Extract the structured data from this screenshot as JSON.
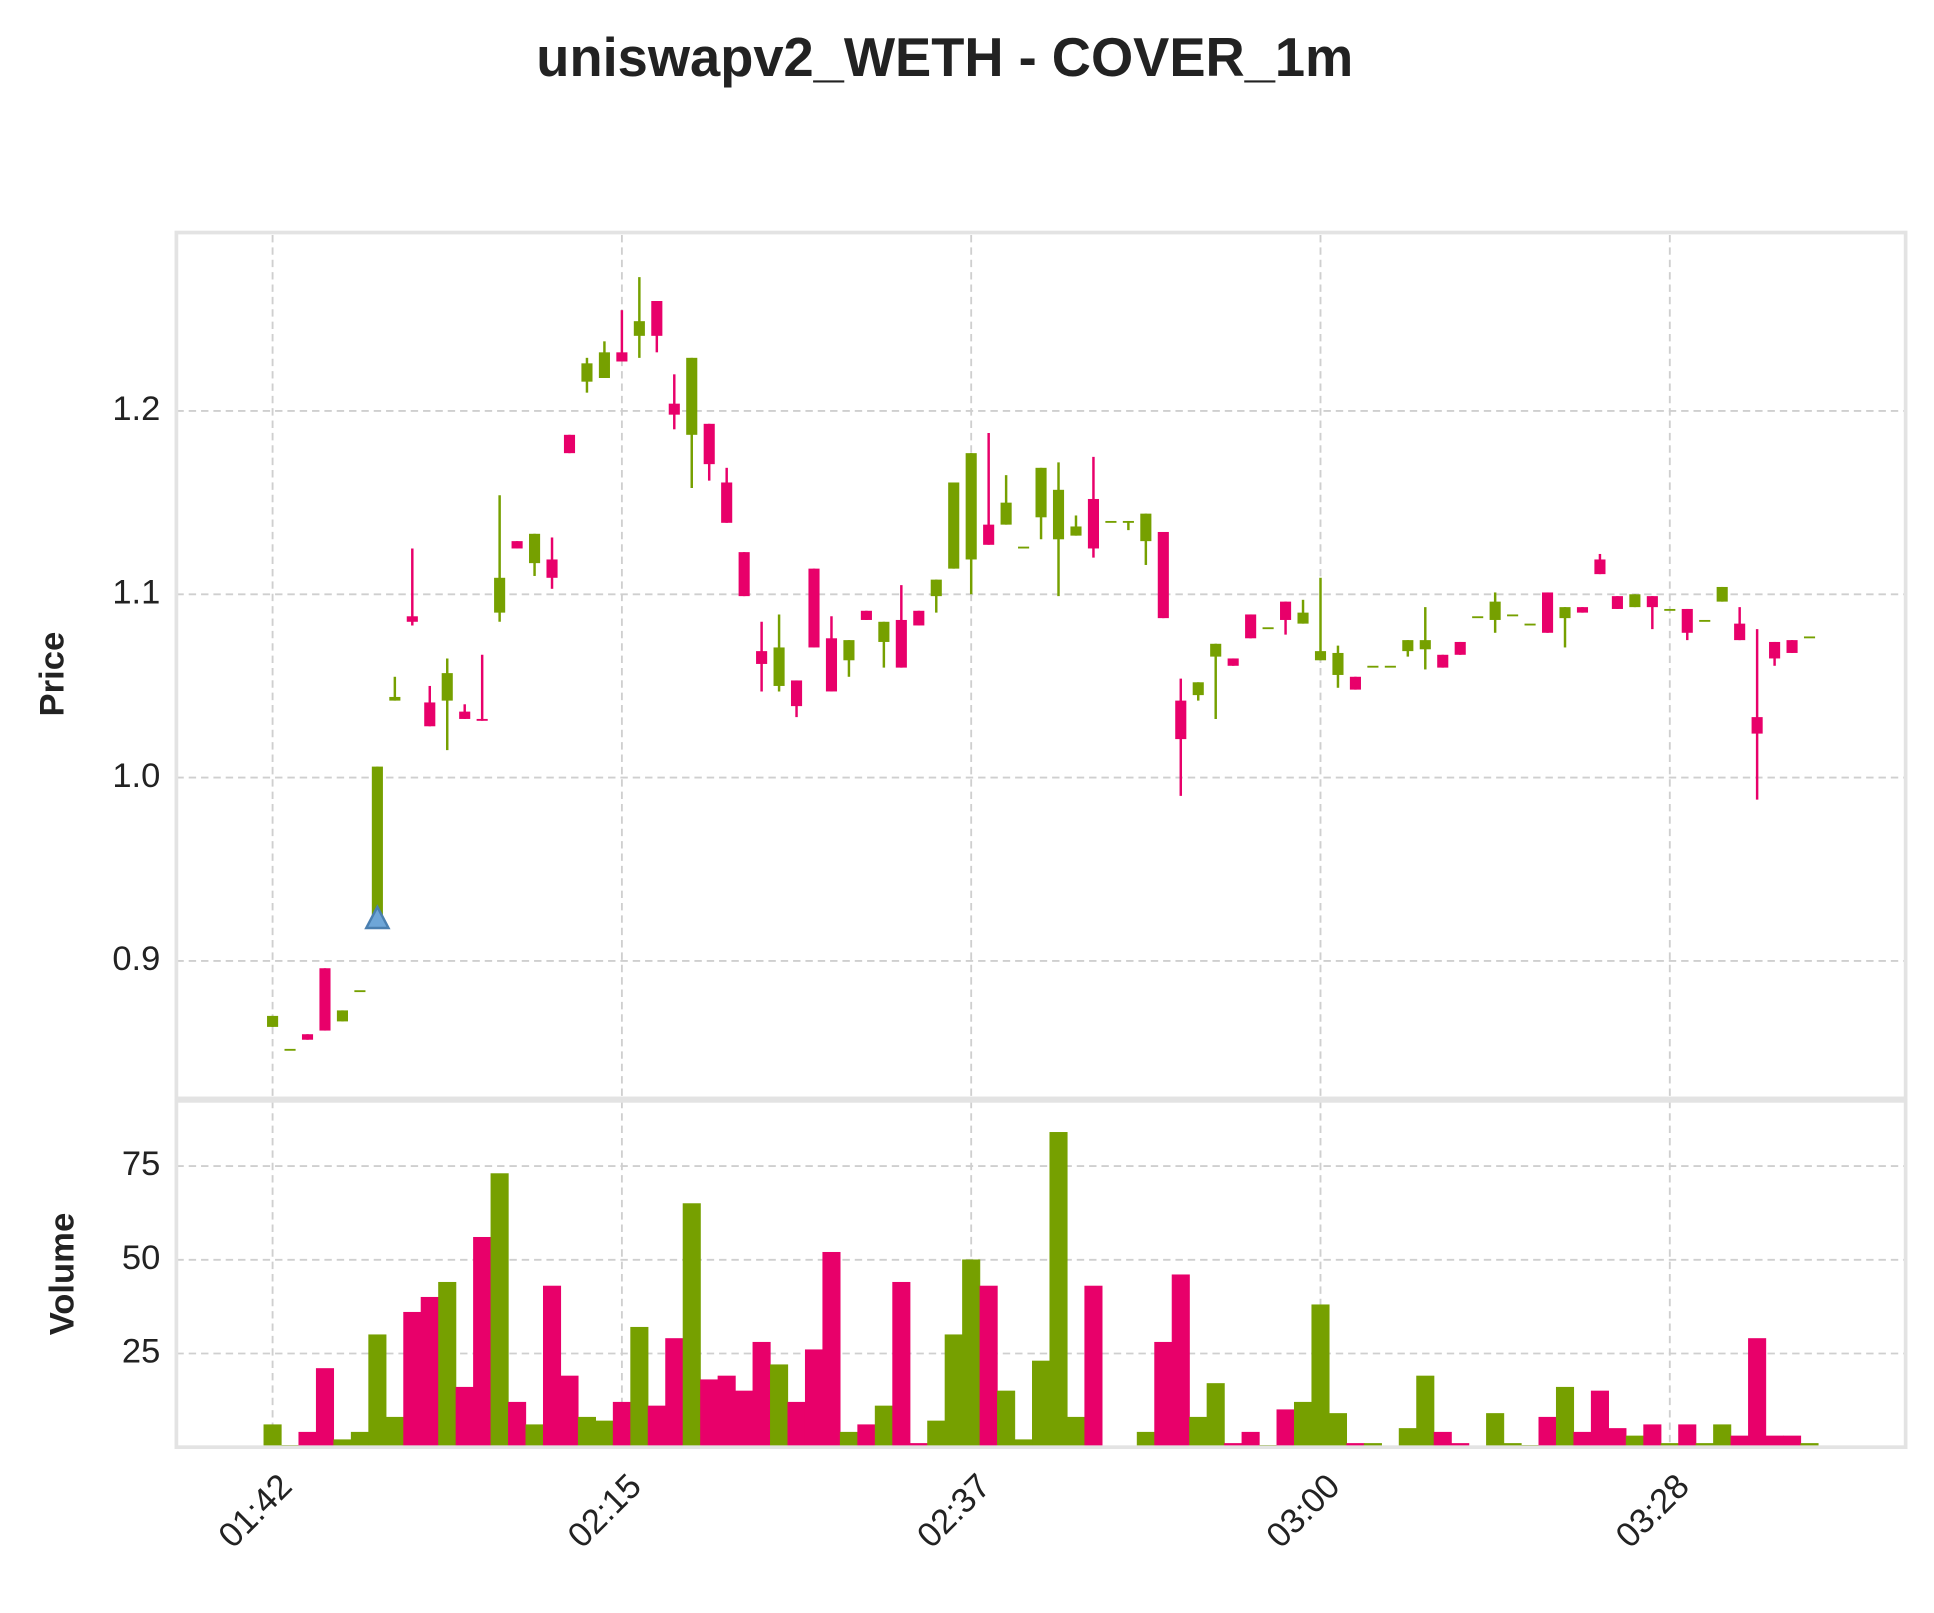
{
  "chart_data": {
    "type": "candlestick",
    "title": "uniswapv2_WETH - COVER_1m",
    "ylabel": "Price",
    "volume_label": "Volume",
    "categories": [
      "01:42",
      null,
      null,
      null,
      null,
      null,
      null,
      null,
      null,
      null,
      null,
      null,
      null,
      null,
      null,
      null,
      null,
      null,
      null,
      null,
      "02:15",
      null,
      null,
      null,
      null,
      null,
      null,
      null,
      null,
      null,
      null,
      null,
      null,
      null,
      null,
      null,
      null,
      null,
      null,
      null,
      "02:37",
      null,
      null,
      null,
      null,
      null,
      null,
      null,
      null,
      null,
      null,
      null,
      null,
      null,
      null,
      null,
      null,
      null,
      null,
      null,
      "03:00",
      null,
      null,
      null,
      null,
      null,
      null,
      null,
      null,
      null,
      null,
      null,
      null,
      null,
      null,
      null,
      null,
      null,
      null,
      null,
      "03:28",
      null,
      null,
      null,
      null,
      null,
      null,
      null,
      null
    ],
    "open": [
      0.864,
      0.852,
      0.86,
      0.896,
      0.867,
      0.884,
      0.922,
      1.042,
      1.088,
      1.041,
      1.042,
      1.036,
      1.032,
      1.09,
      1.129,
      1.117,
      1.119,
      1.187,
      1.216,
      1.218,
      1.232,
      1.241,
      1.26,
      1.204,
      1.187,
      1.193,
      1.161,
      1.123,
      1.069,
      1.05,
      1.053,
      1.114,
      1.076,
      1.064,
      1.091,
      1.074,
      1.086,
      1.091,
      1.099,
      1.114,
      1.119,
      1.138,
      1.138,
      1.126,
      1.142,
      1.13,
      1.132,
      1.152,
      1.14,
      1.139,
      1.129,
      1.134,
      1.042,
      1.045,
      1.066,
      1.065,
      1.089,
      1.082,
      1.096,
      1.084,
      1.064,
      1.056,
      1.055,
      1.061,
      1.061,
      1.069,
      1.07,
      1.067,
      1.074,
      1.088,
      1.086,
      1.089,
      1.084,
      1.101,
      1.087,
      1.093,
      1.119,
      1.099,
      1.093,
      1.099,
      1.092,
      1.092,
      1.086,
      1.096,
      1.084,
      1.033,
      1.074,
      1.075,
      1.077
    ],
    "high": [
      0.87,
      0.852,
      0.86,
      0.896,
      0.873,
      0.884,
      1.006,
      1.055,
      1.125,
      1.05,
      1.065,
      1.04,
      1.067,
      1.154,
      1.129,
      1.133,
      1.131,
      1.187,
      1.229,
      1.238,
      1.255,
      1.273,
      1.26,
      1.22,
      1.229,
      1.193,
      1.169,
      1.123,
      1.085,
      1.089,
      1.053,
      1.114,
      1.088,
      1.075,
      1.091,
      1.085,
      1.105,
      1.091,
      1.108,
      1.161,
      1.177,
      1.188,
      1.165,
      1.126,
      1.169,
      1.172,
      1.143,
      1.175,
      1.14,
      1.14,
      1.144,
      1.134,
      1.054,
      1.052,
      1.073,
      1.065,
      1.089,
      1.082,
      1.096,
      1.097,
      1.109,
      1.072,
      1.055,
      1.061,
      1.061,
      1.075,
      1.093,
      1.067,
      1.074,
      1.088,
      1.101,
      1.089,
      1.084,
      1.101,
      1.093,
      1.093,
      1.122,
      1.099,
      1.1,
      1.099,
      1.092,
      1.092,
      1.086,
      1.104,
      1.093,
      1.081,
      1.074,
      1.075,
      1.077
    ],
    "low": [
      0.864,
      0.852,
      0.857,
      0.862,
      0.867,
      0.884,
      0.92,
      1.042,
      1.083,
      1.028,
      1.015,
      1.032,
      1.031,
      1.085,
      1.125,
      1.11,
      1.103,
      1.177,
      1.21,
      1.218,
      1.227,
      1.229,
      1.232,
      1.19,
      1.158,
      1.162,
      1.139,
      1.099,
      1.047,
      1.047,
      1.033,
      1.071,
      1.047,
      1.055,
      1.086,
      1.06,
      1.06,
      1.083,
      1.09,
      1.114,
      1.1,
      1.127,
      1.138,
      1.126,
      1.13,
      1.099,
      1.132,
      1.12,
      1.14,
      1.135,
      1.116,
      1.087,
      0.99,
      1.042,
      1.032,
      1.061,
      1.076,
      1.082,
      1.078,
      1.084,
      1.064,
      1.049,
      1.048,
      1.061,
      1.061,
      1.066,
      1.059,
      1.06,
      1.067,
      1.088,
      1.079,
      1.089,
      1.084,
      1.079,
      1.071,
      1.09,
      1.111,
      1.092,
      1.093,
      1.081,
      1.092,
      1.075,
      1.086,
      1.096,
      1.075,
      0.988,
      1.061,
      1.068,
      1.077
    ],
    "close": [
      0.87,
      0.852,
      0.857,
      0.862,
      0.873,
      0.884,
      1.006,
      1.044,
      1.085,
      1.028,
      1.057,
      1.032,
      1.031,
      1.109,
      1.125,
      1.133,
      1.109,
      1.177,
      1.226,
      1.232,
      1.227,
      1.249,
      1.241,
      1.198,
      1.229,
      1.171,
      1.139,
      1.099,
      1.062,
      1.071,
      1.039,
      1.071,
      1.047,
      1.075,
      1.086,
      1.085,
      1.06,
      1.083,
      1.108,
      1.161,
      1.177,
      1.127,
      1.15,
      1.126,
      1.169,
      1.157,
      1.137,
      1.125,
      1.14,
      1.14,
      1.144,
      1.087,
      1.021,
      1.052,
      1.073,
      1.061,
      1.076,
      1.082,
      1.086,
      1.09,
      1.069,
      1.068,
      1.048,
      1.061,
      1.061,
      1.075,
      1.075,
      1.06,
      1.067,
      1.088,
      1.096,
      1.089,
      1.084,
      1.079,
      1.093,
      1.09,
      1.111,
      1.092,
      1.1,
      1.093,
      1.092,
      1.079,
      1.086,
      1.104,
      1.075,
      1.024,
      1.065,
      1.068,
      1.077
    ],
    "volume": [
      6,
      0.5,
      4,
      21,
      2,
      4,
      30,
      8,
      36,
      40,
      44,
      16,
      56,
      73,
      12,
      6,
      43,
      19,
      8,
      7,
      12,
      32,
      11,
      29,
      65,
      18,
      19,
      15,
      28,
      22,
      12,
      26,
      52,
      4,
      6,
      11,
      44,
      1,
      7,
      30,
      50,
      43,
      15,
      2,
      23,
      84,
      8,
      43,
      0.3,
      0.3,
      4,
      28,
      46,
      8,
      17,
      1,
      4,
      0.5,
      10,
      12,
      38,
      9,
      1,
      1,
      0.3,
      5,
      19,
      4,
      1,
      0.3,
      9,
      1,
      0.5,
      8,
      16,
      4,
      15,
      5,
      3,
      6,
      1,
      6,
      1,
      6,
      3,
      29,
      3,
      3,
      1
    ],
    "buy_signals": [
      null,
      null,
      null,
      null,
      null,
      null,
      0.92,
      null,
      null,
      null,
      null,
      null,
      null,
      null,
      null,
      null,
      null,
      null,
      null,
      null,
      null,
      null,
      null,
      null,
      null,
      null,
      null,
      null,
      null,
      null,
      null,
      null,
      null,
      null,
      null,
      null,
      null,
      null,
      null,
      null,
      null,
      null,
      null,
      null,
      null,
      null,
      null,
      null,
      null,
      null,
      null,
      null,
      null,
      null,
      null,
      null,
      null,
      null,
      null,
      null,
      null,
      null,
      null,
      null,
      null,
      null,
      null,
      null,
      null,
      null,
      null,
      null,
      null,
      null,
      null,
      null,
      null,
      null,
      null,
      null,
      null,
      null,
      null,
      null,
      null,
      null,
      null,
      null,
      null
    ],
    "up_color": "#76a000",
    "down_color": "#e8006a",
    "signal_color": "#6ea6d8",
    "ylim": [
      0.825,
      1.296
    ],
    "yticks": [
      0.9,
      {
        "value": 1,
        "label": "1.0"
      },
      1.1,
      1.2
    ],
    "volume_ylim": [
      0,
      92.4
    ],
    "volume_yticks": [
      25,
      50,
      75
    ],
    "grid": true
  }
}
